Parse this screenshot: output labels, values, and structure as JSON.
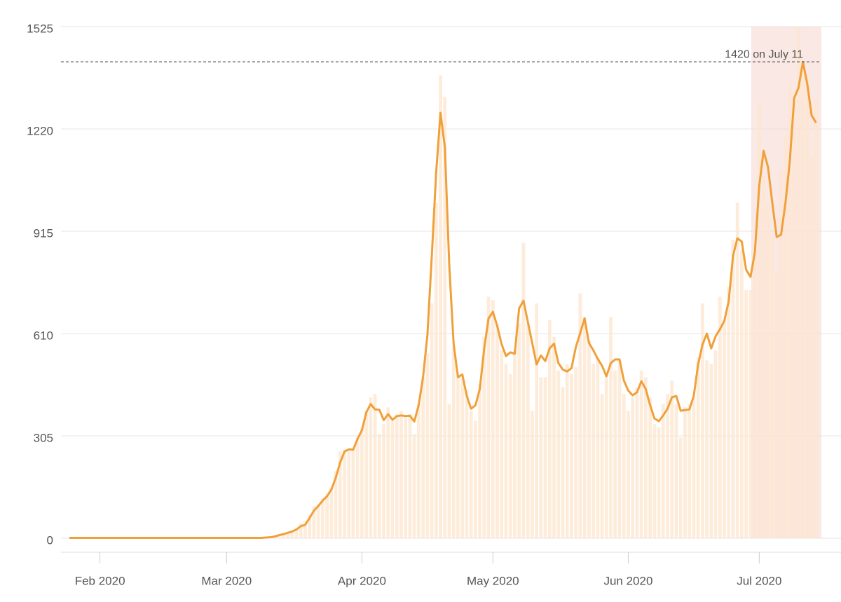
{
  "chart_data": {
    "type": "bar",
    "categories": [
      null,
      null,
      null,
      null,
      null,
      null,
      null,
      "Feb 2020",
      null,
      null,
      null,
      null,
      null,
      null,
      null,
      null,
      null,
      null,
      null,
      null,
      null,
      null,
      null,
      null,
      null,
      null,
      null,
      null,
      null,
      null,
      null,
      null,
      null,
      null,
      null,
      null,
      "Mar 2020",
      null,
      null,
      null,
      null,
      null,
      null,
      null,
      null,
      null,
      null,
      null,
      null,
      null,
      null,
      null,
      null,
      null,
      null,
      null,
      null,
      null,
      null,
      null,
      null,
      null,
      null,
      null,
      null,
      null,
      null,
      "Apr 2020",
      null,
      null,
      null,
      null,
      null,
      null,
      null,
      null,
      null,
      null,
      null,
      null,
      null,
      null,
      null,
      null,
      null,
      null,
      null,
      null,
      null,
      null,
      null,
      null,
      null,
      null,
      null,
      null,
      null,
      "May 2020",
      null,
      null,
      null,
      null,
      null,
      null,
      null,
      null,
      null,
      null,
      null,
      null,
      null,
      null,
      null,
      null,
      null,
      null,
      null,
      null,
      null,
      null,
      null,
      null,
      null,
      null,
      null,
      null,
      null,
      null,
      "Jun 2020",
      null,
      null,
      null,
      null,
      null,
      null,
      null,
      null,
      null,
      null,
      null,
      null,
      null,
      null,
      null,
      null,
      null,
      null,
      null,
      null,
      null,
      null,
      null,
      null,
      null,
      null,
      null,
      null,
      null,
      "Jul 2020",
      null,
      null,
      null,
      null,
      null,
      null,
      null,
      null,
      null,
      null,
      null,
      null,
      null
    ],
    "series": [
      {
        "type": "bar",
        "color": "#fde6cf",
        "values": [
          0,
          0,
          0,
          0,
          0,
          0,
          0,
          0,
          0,
          0,
          0,
          0,
          0,
          0,
          0,
          0,
          0,
          0,
          0,
          0,
          0,
          0,
          0,
          0,
          0,
          0,
          0,
          0,
          0,
          0,
          0,
          0,
          0,
          0,
          0,
          0,
          0,
          0,
          0,
          0,
          0,
          0,
          0,
          0,
          0,
          0,
          0,
          5,
          12,
          14,
          18,
          22,
          30,
          45,
          50,
          70,
          95,
          100,
          120,
          130,
          150,
          200,
          260,
          265,
          260,
          262,
          300,
          330,
          380,
          420,
          430,
          310,
          340,
          390,
          350,
          370,
          380,
          360,
          370,
          310,
          400,
          480,
          550,
          700,
          1000,
          1380,
          1316,
          400,
          570,
          490,
          480,
          440,
          380,
          350,
          460,
          600,
          720,
          710,
          640,
          560,
          520,
          490,
          560,
          640,
          880,
          640,
          380,
          700,
          480,
          480,
          650,
          600,
          500,
          450,
          520,
          490,
          510,
          730,
          660,
          590,
          520,
          540,
          430,
          490,
          660,
          500,
          530,
          430,
          380,
          420,
          450,
          500,
          480,
          420,
          340,
          330,
          400,
          430,
          470,
          400,
          300,
          390,
          400,
          420,
          540,
          700,
          530,
          520,
          560,
          720,
          650,
          750,
          890,
          1000,
          860,
          740,
          740,
          880,
          1300,
          1080,
          1000,
          900,
          790,
          1100,
          1200,
          1360,
          1290,
          1525,
          1400,
          1380,
          1140,
          1310
        ]
      },
      {
        "type": "line",
        "color": "#f0a03a",
        "values": [
          1,
          1,
          1,
          1,
          1,
          1,
          1,
          1,
          1,
          1,
          1,
          1,
          1,
          1,
          1,
          1,
          1,
          1,
          1,
          1,
          1,
          1,
          1,
          1,
          1,
          1,
          1,
          1,
          1,
          1,
          1,
          1,
          1,
          1,
          1,
          1,
          1,
          1,
          1,
          1,
          1,
          1,
          1,
          1,
          1,
          2,
          3,
          5,
          9,
          12,
          16,
          20,
          26,
          36,
          40,
          60,
          82,
          96,
          112,
          125,
          145,
          180,
          225,
          258,
          265,
          264,
          296,
          322,
          375,
          400,
          384,
          383,
          352,
          370,
          353,
          364,
          366,
          364,
          365,
          348,
          397,
          480,
          606,
          840,
          1090,
          1268,
          1165,
          815,
          580,
          480,
          488,
          425,
          386,
          396,
          445,
          565,
          655,
          675,
          632,
          578,
          543,
          554,
          550,
          685,
          708,
          645,
          582,
          518,
          545,
          528,
          566,
          580,
          522,
          503,
          497,
          507,
          570,
          612,
          655,
          582,
          560,
          535,
          514,
          483,
          522,
          533,
          533,
          470,
          440,
          426,
          435,
          468,
          445,
          397,
          357,
          349,
          366,
          386,
          420,
          424,
          380,
          382,
          384,
          424,
          518,
          577,
          610,
          566,
          602,
          623,
          648,
          706,
          842,
          894,
          884,
          800,
          779,
          852,
          1051,
          1155,
          1107,
          999,
          898,
          905,
          999,
          1124,
          1312,
          1343,
          1420,
          1354,
          1260,
          1239
        ]
      }
    ],
    "ylim": [
      0,
      1525
    ],
    "yticks": [
      0,
      305,
      610,
      915,
      1220,
      1525
    ],
    "grid": true,
    "annotation": {
      "text": "1420 on July 11",
      "value": 1420
    }
  }
}
